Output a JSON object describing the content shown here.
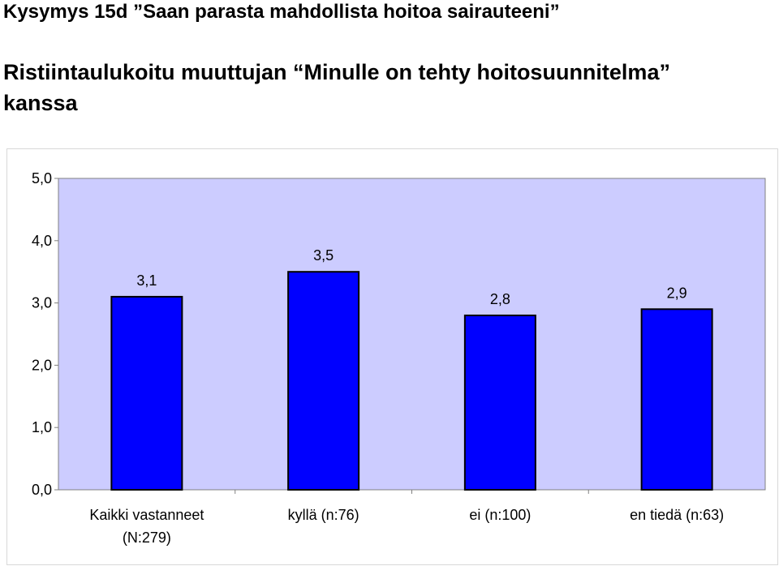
{
  "header": {
    "question": "Kysymys 15d  ”Saan parasta mahdollista hoitoa sairauteeni”",
    "subtitle_line1": "Ristiintaulukoitu muuttujan “Minulle on tehty hoitosuunnitelma”",
    "subtitle_line2": "kanssa"
  },
  "colors": {
    "plot_bg": "#ccccff",
    "bar_fill": "#0000ff",
    "bar_stroke": "#000000",
    "axis": "#808080"
  },
  "chart_data": {
    "type": "bar",
    "categories": [
      [
        "Kaikki vastanneet",
        "(N:279)"
      ],
      [
        "kyllä (n:76)"
      ],
      [
        "ei (n:100)"
      ],
      [
        "en tiedä (n:63)"
      ]
    ],
    "values": [
      3.1,
      3.5,
      2.8,
      2.9
    ],
    "value_labels": [
      "3,1",
      "3,5",
      "2,8",
      "2,9"
    ],
    "ylim": [
      0,
      5
    ],
    "yticks": [
      {
        "value": 0,
        "label": "0,0"
      },
      {
        "value": 1,
        "label": "1,0"
      },
      {
        "value": 2,
        "label": "2,0"
      },
      {
        "value": 3,
        "label": "3,0"
      },
      {
        "value": 4,
        "label": "4,0"
      },
      {
        "value": 5,
        "label": "5,0"
      }
    ],
    "grid": false,
    "legend": "none"
  }
}
